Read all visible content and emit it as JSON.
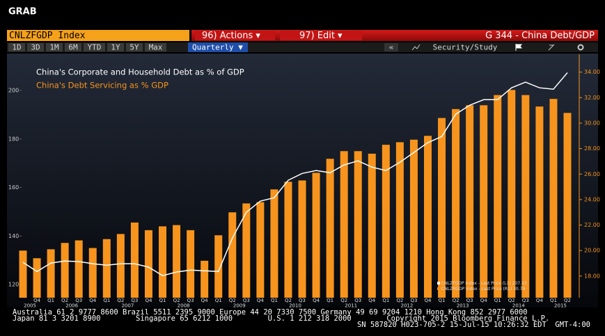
{
  "ui": {
    "window_title": "GRAB",
    "security": "CNLZFGDP Index",
    "actions": "96) Actions ▾",
    "edit": "97) Edit ▾",
    "page_title": "G 344 - China Debt/GDP",
    "periods": [
      "1D",
      "3D",
      "1M",
      "6M",
      "YTD",
      "1Y",
      "5Y",
      "Max"
    ],
    "frequency": "Quarterly ▼",
    "collapse": "«",
    "security_study": "Security/Study",
    "footer": [
      "Australia 61 2 9777 8600 Brazil 5511 2395 9000 Europe 44 20 7330 7500 Germany 49 69 9204 1210 Hong Kong 852 2977 6000",
      "Japan 81 3 3201 8900        Singapore 65 6212 1000        U.S. 1 212 318 2000        Copyright 2015 Bloomberg Finance L.P.",
      "SN 587820 H023-705-2 15-Jul-15 10:26:32 EDT  GMT-4:00"
    ]
  },
  "chart_data": {
    "type": "combo",
    "categories": [
      null,
      "Q4",
      "Q1",
      "Q2",
      "Q3",
      "Q4",
      "Q1",
      "Q2",
      "Q3",
      "Q4",
      "Q1",
      "Q2",
      "Q3",
      "Q4",
      "Q1",
      "Q2",
      "Q3",
      "Q4",
      "Q1",
      "Q2",
      "Q3",
      "Q4",
      "Q1",
      "Q2",
      "Q3",
      "Q4",
      "Q1",
      "Q2",
      "Q3",
      "Q4",
      "Q1",
      "Q2",
      "Q3",
      "Q4",
      "Q1",
      "Q2",
      "Q3",
      "Q4",
      "Q1",
      "Q2"
    ],
    "years": [
      "2005",
      "2006",
      "2007",
      "2008",
      "2009",
      "2010",
      "2011",
      "2012",
      "2013",
      "2014",
      "2015"
    ],
    "series": [
      {
        "name": "China's Corporate and Household Debt as % of GDP",
        "color": "#ffffff",
        "type": "line",
        "values": [
          129.2,
          125.4,
          128.9,
          129.7,
          129.5,
          128.6,
          128.0,
          128.6,
          128.6,
          127.2,
          123.7,
          125.2,
          126.0,
          125.7,
          125.4,
          139.2,
          149.8,
          154.4,
          155.8,
          163.0,
          165.8,
          167.0,
          166.1,
          169.3,
          171.0,
          168.4,
          167.0,
          170.4,
          174.4,
          178.5,
          181.0,
          190.2,
          193.9,
          196.2,
          196.2,
          201.1,
          203.4,
          201.1,
          200.5,
          207.3
        ]
      },
      {
        "name": "China's Debt Servicing as % GDP",
        "color": "#f7941d",
        "type": "bar",
        "axis": "y2",
        "values": [
          20.0,
          19.4,
          20.1,
          20.6,
          20.8,
          20.2,
          20.9,
          21.3,
          22.2,
          21.6,
          21.9,
          22.0,
          21.6,
          19.2,
          21.2,
          23.0,
          23.7,
          23.8,
          24.8,
          25.4,
          25.5,
          26.1,
          27.2,
          27.8,
          27.8,
          27.6,
          28.3,
          28.5,
          28.7,
          29.0,
          30.4,
          31.1,
          31.4,
          31.4,
          32.2,
          32.6,
          32.2,
          31.3,
          31.9,
          30.8
        ]
      }
    ],
    "legend_notes": [
      "CNLZFGDP Index - Last Price (L1) 207.33",
      "CNLZRGDP Index - Last Price (R1) 30.79"
    ],
    "ylim": [
      114.6,
      214.9
    ],
    "yticks": [
      120,
      140,
      160,
      180,
      200
    ],
    "y2lim": [
      16.3,
      35.4
    ],
    "y2ticks": [
      {
        "value": 18,
        "label": "18.00"
      },
      {
        "value": 20,
        "label": "20.00"
      },
      {
        "value": 22,
        "label": "22.00"
      },
      {
        "value": 24,
        "label": "24.00"
      },
      {
        "value": 26,
        "label": "26.00"
      },
      {
        "value": 28,
        "label": "28.00"
      },
      {
        "value": 30,
        "label": "30.00"
      },
      {
        "value": 32,
        "label": "32.00"
      },
      {
        "value": 34,
        "label": "34.00"
      }
    ],
    "grid": false
  }
}
